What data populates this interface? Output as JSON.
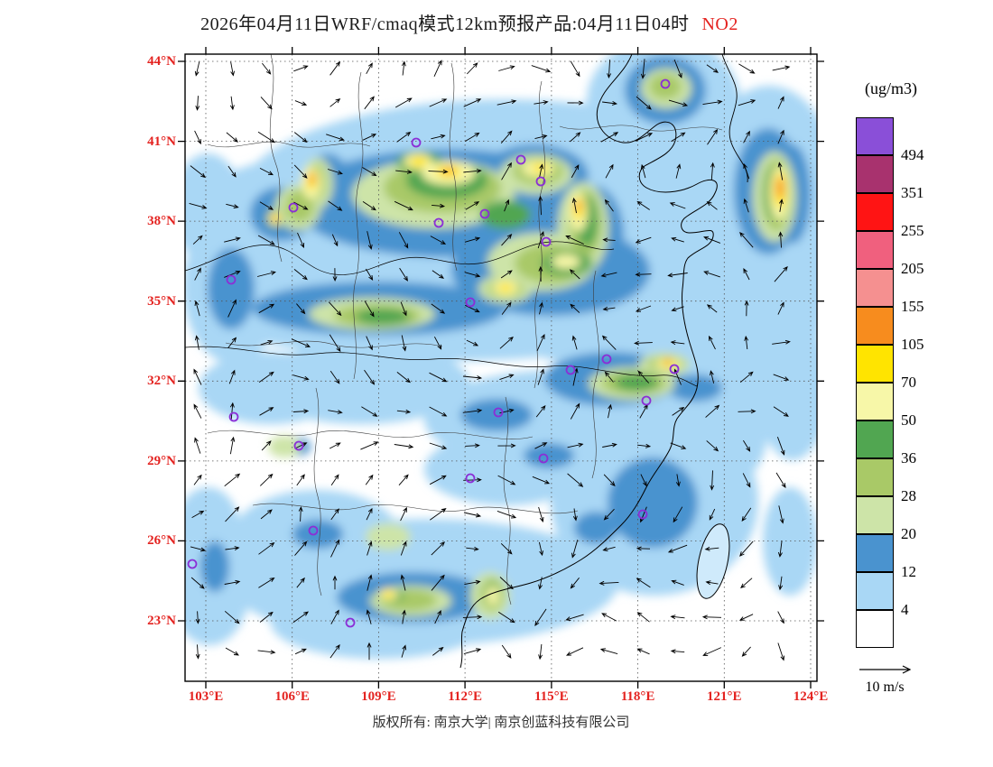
{
  "title": {
    "main": "2026年04月11日WRF/cmaq模式12km预报产品:04月11日04时",
    "pollutant": "NO2"
  },
  "axes": {
    "lat_labels": [
      "44°N",
      "41°N",
      "38°N",
      "35°N",
      "32°N",
      "29°N",
      "26°N",
      "23°N"
    ],
    "lon_labels": [
      "103°E",
      "106°E",
      "109°E",
      "112°E",
      "115°E",
      "118°E",
      "121°E",
      "124°E"
    ]
  },
  "colorbar": {
    "unit": "(ug/m3)",
    "levels_top_to_bottom": [
      "494",
      "351",
      "255",
      "205",
      "155",
      "105",
      "70",
      "50",
      "36",
      "28",
      "20",
      "12",
      "4"
    ],
    "colors_top_to_bottom": [
      "#8a4fd8",
      "#a8326e",
      "#ff1414",
      "#f0607e",
      "#f59090",
      "#f78c1e",
      "#ffe400",
      "#f7f7a8",
      "#51a651",
      "#a9c967",
      "#cde4a8",
      "#4a93cf",
      "#a9d7f5",
      "#ffffff"
    ]
  },
  "wind_legend": {
    "label": "10 m/s"
  },
  "footer": {
    "copyright": "版权所有: 南京大学| 南京创蓝科技有限公司"
  },
  "colors": {
    "accent_red": "#e42320",
    "marker_purple": "#8b2fd6",
    "arrow_black": "#000000"
  }
}
